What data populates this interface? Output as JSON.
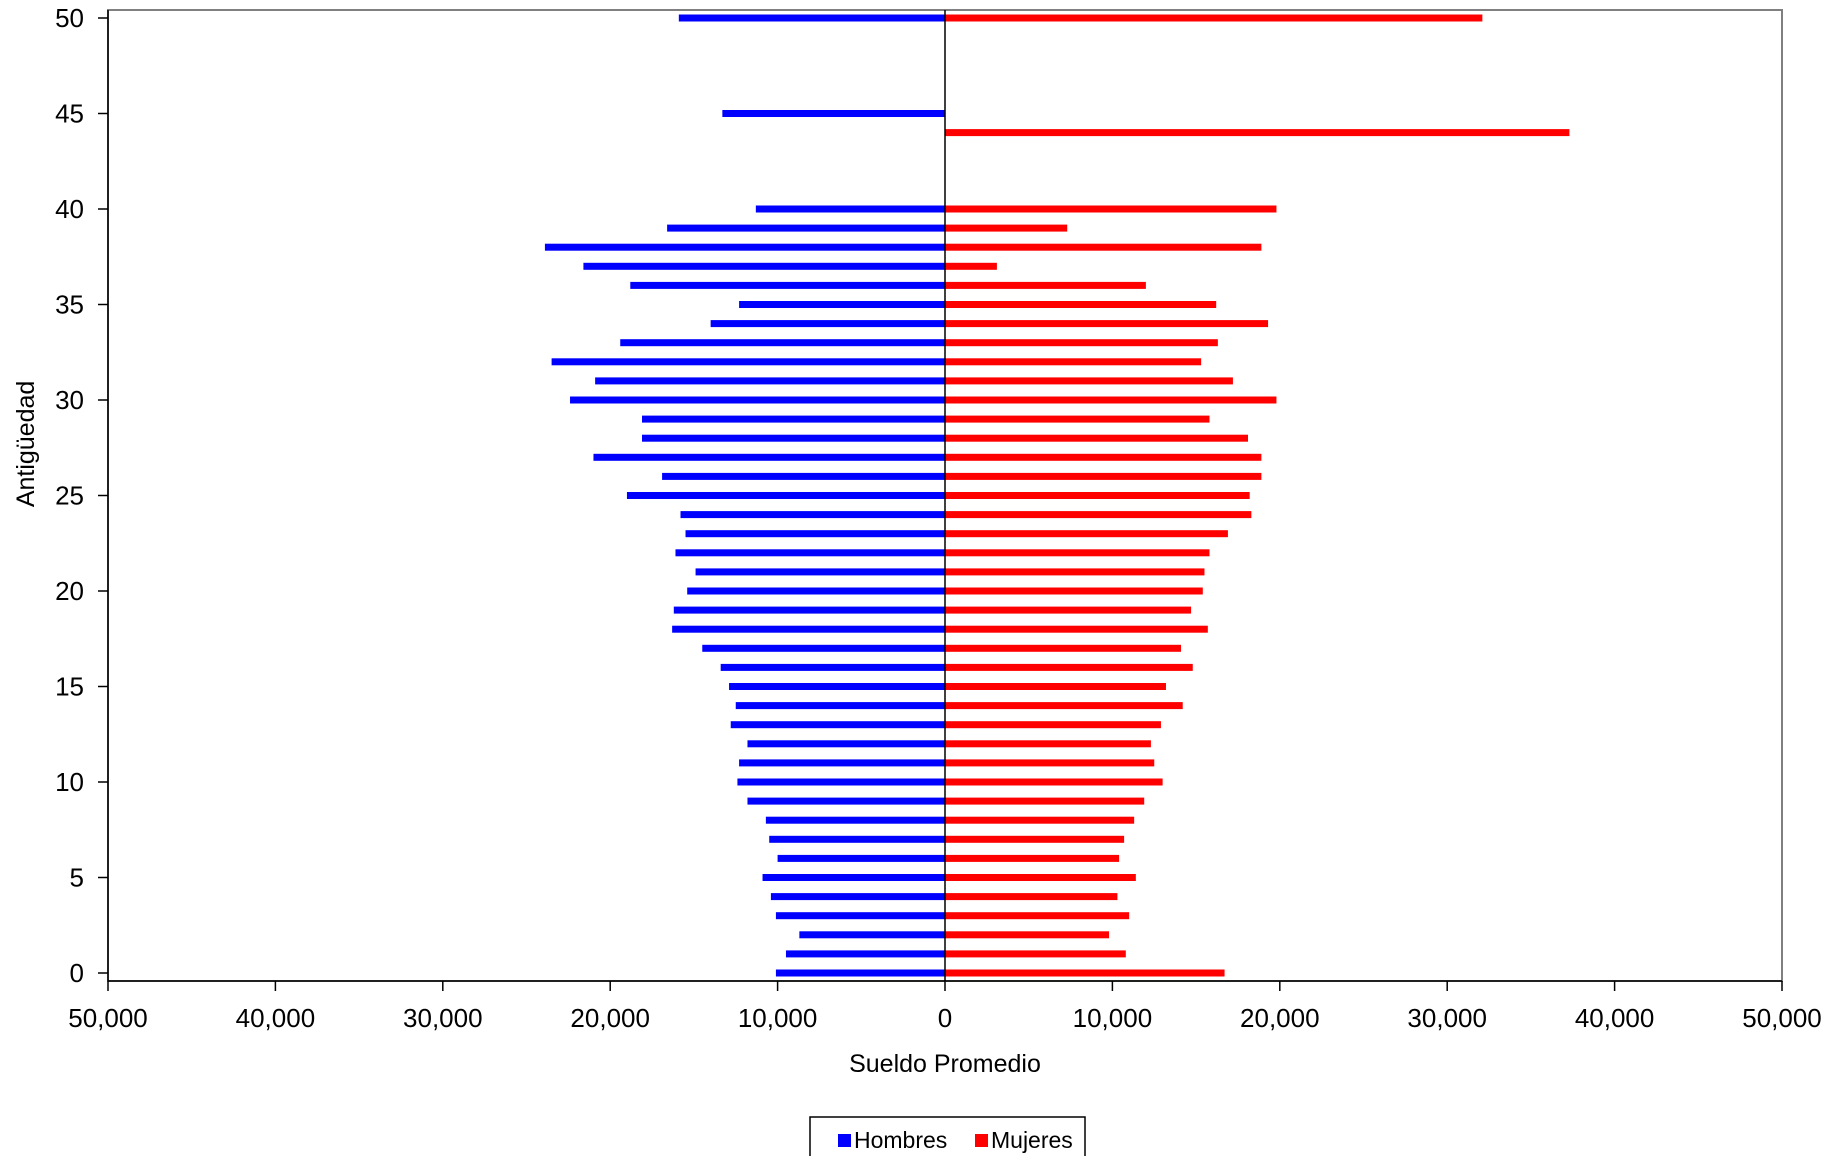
{
  "chart_data": {
    "type": "bar",
    "orientation": "horizontal",
    "xlabel": "Sueldo Promedio",
    "ylabel": "Antigüedad",
    "xlim": [
      -50000,
      50000
    ],
    "ylim": [
      0,
      50
    ],
    "x_ticks": [
      -50000,
      -40000,
      -30000,
      -20000,
      -10000,
      0,
      10000,
      20000,
      30000,
      40000,
      50000
    ],
    "x_tick_labels": [
      "50,000",
      "40,000",
      "30,000",
      "20,000",
      "10,000",
      "0",
      "10,000",
      "20,000",
      "30,000",
      "40,000",
      "50,000"
    ],
    "y_ticks": [
      0,
      5,
      10,
      15,
      20,
      25,
      30,
      35,
      40,
      45,
      50
    ],
    "y_tick_labels": [
      "0",
      "5",
      "10",
      "15",
      "20",
      "25",
      "30",
      "35",
      "40",
      "45",
      "50"
    ],
    "grid": false,
    "legend_position": "bottom-center",
    "categories": [
      0,
      1,
      2,
      3,
      4,
      5,
      6,
      7,
      8,
      9,
      10,
      11,
      12,
      13,
      14,
      15,
      16,
      17,
      18,
      19,
      20,
      21,
      22,
      23,
      24,
      25,
      26,
      27,
      28,
      29,
      30,
      31,
      32,
      33,
      34,
      35,
      36,
      37,
      38,
      39,
      40,
      41,
      42,
      43,
      44,
      45,
      46,
      47,
      48,
      49,
      50
    ],
    "series": [
      {
        "name": "Hombres",
        "color": "#0000ff",
        "side": "left",
        "values": [
          10100,
          9500,
          8700,
          10100,
          10400,
          10900,
          10000,
          10500,
          10700,
          11800,
          12400,
          12300,
          11800,
          12800,
          12500,
          12900,
          13400,
          14500,
          16300,
          16200,
          15400,
          14900,
          16100,
          15500,
          15800,
          19000,
          16900,
          21000,
          18100,
          18100,
          22400,
          20900,
          23500,
          19400,
          14000,
          12300,
          18800,
          21600,
          23900,
          16600,
          11300,
          null,
          null,
          null,
          null,
          13300,
          null,
          null,
          null,
          null,
          15900
        ]
      },
      {
        "name": "Mujeres",
        "color": "#ff0000",
        "side": "right",
        "values": [
          16700,
          10800,
          9800,
          11000,
          10300,
          11400,
          10400,
          10700,
          11300,
          11900,
          13000,
          12500,
          12300,
          12900,
          14200,
          13200,
          14800,
          14100,
          15700,
          14700,
          15400,
          15500,
          15800,
          16900,
          18300,
          18200,
          18900,
          18900,
          18100,
          15800,
          19800,
          17200,
          15300,
          16300,
          19300,
          16200,
          12000,
          3100,
          18900,
          7300,
          19800,
          null,
          null,
          null,
          37300,
          null,
          null,
          null,
          null,
          null,
          32100
        ]
      }
    ]
  }
}
